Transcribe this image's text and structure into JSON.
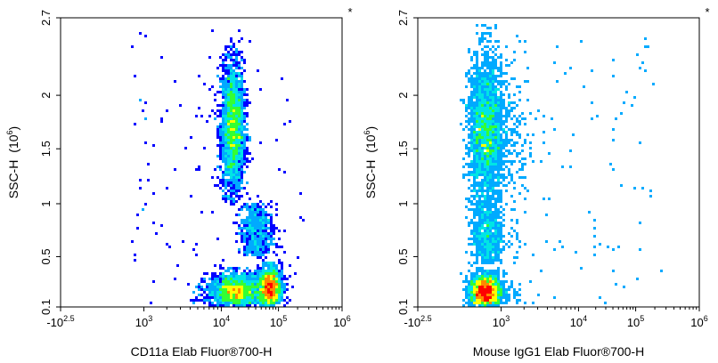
{
  "colors": {
    "density_scale": [
      "#0000ff",
      "#00aaff",
      "#00e5e5",
      "#33ff33",
      "#ffff00",
      "#ff8800",
      "#ff0000"
    ],
    "frame": "#000000",
    "background": "#ffffff"
  },
  "chart_data": [
    {
      "type": "scatter",
      "style": "flow cytometry density dot plot (pseudocolor)",
      "marker": "*",
      "xlabel": "CD11a Elab Fluor®700-H",
      "ylabel": "SSC-H",
      "ylabel_unit_base": "(10",
      "ylabel_unit_exp": "6",
      "ylabel_unit_close": ")",
      "x_scale": "biexponential (logicle)",
      "xlim": [
        -316,
        1000000
      ],
      "ylim": [
        0.1,
        2.7
      ],
      "grid": false,
      "x_ticks": [
        {
          "base": "-10",
          "exp": "2.5",
          "value": -316
        },
        {
          "base": "10",
          "exp": "3",
          "value": 1000
        },
        {
          "base": "10",
          "exp": "4",
          "value": 10000
        },
        {
          "base": "10",
          "exp": "5",
          "value": 100000
        },
        {
          "base": "10",
          "exp": "6",
          "value": 1000000
        }
      ],
      "y_ticks": [
        "0.1",
        "0.5",
        "1",
        "1.5",
        "2",
        "2.7"
      ],
      "y_tick_values": [
        0.1,
        0.5,
        1,
        1.5,
        2,
        2.7
      ],
      "populations": [
        {
          "x_center": 16000,
          "y_center": 1.7,
          "x_spread_decades": 0.1,
          "y_spread": 0.3,
          "shape": "vertical band",
          "y_extent": [
            1.0,
            2.65
          ]
        },
        {
          "x_center": 18000,
          "y_center": 0.22,
          "x_spread_decades": 0.22,
          "y_spread": 0.07,
          "shape": "horizontal band",
          "y_extent": [
            0.1,
            0.45
          ]
        },
        {
          "x_center": 70000,
          "y_center": 0.25,
          "x_spread_decades": 0.1,
          "y_spread": 0.08,
          "shape": "dense cluster",
          "y_extent": [
            0.1,
            0.6
          ]
        },
        {
          "x_center": 40000,
          "y_center": 0.75,
          "x_spread_decades": 0.15,
          "y_spread": 0.2,
          "shape": "sparse trail",
          "y_extent": [
            0.5,
            1.0
          ]
        }
      ]
    },
    {
      "type": "scatter",
      "style": "flow cytometry density dot plot (pseudocolor)",
      "marker": "*",
      "xlabel": "Mouse IgG1 Elab Fluor®700-H",
      "ylabel": "SSC-H",
      "ylabel_unit_base": "(10",
      "ylabel_unit_exp": "6",
      "ylabel_unit_close": ")",
      "x_scale": "biexponential (logicle)",
      "xlim": [
        -316,
        1000000
      ],
      "ylim": [
        0.1,
        2.7
      ],
      "grid": false,
      "x_ticks": [
        {
          "base": "-10",
          "exp": "2.5",
          "value": -316
        },
        {
          "base": "10",
          "exp": "3",
          "value": 1000
        },
        {
          "base": "10",
          "exp": "4",
          "value": 10000
        },
        {
          "base": "10",
          "exp": "5",
          "value": 100000
        },
        {
          "base": "10",
          "exp": "6",
          "value": 1000000
        }
      ],
      "y_ticks": [
        "0.1",
        "0.5",
        "1",
        "1.5",
        "2",
        "2.7"
      ],
      "y_tick_values": [
        0.1,
        0.5,
        1,
        1.5,
        2,
        2.7
      ],
      "populations": [
        {
          "x_center": 400,
          "y_center": 1.65,
          "x_spread_decades": 0.3,
          "y_spread": 0.35,
          "shape": "vertical band",
          "y_extent": [
            0.9,
            2.65
          ]
        },
        {
          "x_center": 350,
          "y_center": 0.22,
          "x_spread_decades": 0.25,
          "y_spread": 0.07,
          "shape": "dense cluster",
          "y_extent": [
            0.1,
            0.45
          ]
        },
        {
          "x_center": 400,
          "y_center": 0.7,
          "x_spread_decades": 0.25,
          "y_spread": 0.18,
          "shape": "sparse trail",
          "y_extent": [
            0.45,
            1.0
          ]
        }
      ]
    }
  ]
}
